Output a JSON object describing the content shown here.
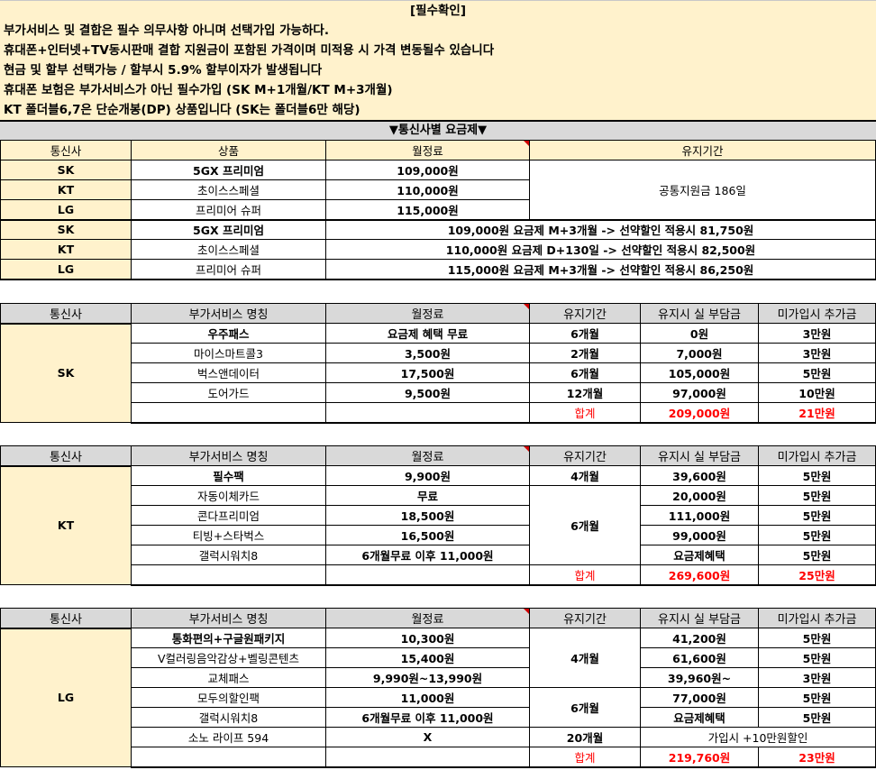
{
  "notice": {
    "title": "[필수확인]",
    "lines": [
      "부가서비스 및 결합은 필수 의무사항 아니며 선택가입 가능하다.",
      "휴대폰+인터넷+TV동시판매 결합 지원금이 포함된 가격이며 미적용 시 가격 변동될수 있습니다",
      "현금 및 할부 선택가능 / 할부시 5.9% 할부이자가 발생됩니다",
      "휴대폰 보험은 부가서비스가 아닌 필수가입 (SK M+1개월/KT M+3개월)",
      "KT 폴더블6,7은 단순개봉(DP) 상품입니다 (SK는 폴더블6만 해당)"
    ]
  },
  "banner": "▼통신사별 요금제▼",
  "plans": {
    "headers": [
      "통신사",
      "상품",
      "월정료",
      "유지기간"
    ],
    "support": "공통지원금 186일",
    "rows": [
      [
        "SK",
        "5GX 프리미엄",
        "109,000원"
      ],
      [
        "KT",
        "초이스스페셜",
        "110,000원"
      ],
      [
        "LG",
        "프리미어 슈퍼",
        "115,000원"
      ]
    ],
    "discount": [
      [
        "SK",
        "5GX 프리미엄",
        "109,000원 요금제 M+3개월 -> 선약할인 적용시 81,750원"
      ],
      [
        "KT",
        "초이스스페셜",
        "110,000원 요금제 D+130일 -> 선약할인 적용시 82,500원"
      ],
      [
        "LG",
        "프리미어 슈퍼",
        "115,000원 요금제 M+3개월 -> 선약할인 적용시 86,250원"
      ]
    ]
  },
  "addon_headers": [
    "통신사",
    "부가서비스 명칭",
    "월정료",
    "유지기간",
    "유지시 실 부담금",
    "미가입시 추가금"
  ],
  "sk": {
    "carrier": "SK",
    "rows": [
      [
        "우주패스",
        "요금제 혜택 무료",
        "6개월",
        "0원",
        "3만원"
      ],
      [
        "마이스마트콜3",
        "3,500원",
        "2개월",
        "7,000원",
        "3만원"
      ],
      [
        "벅스앤데이터",
        "17,500원",
        "6개월",
        "105,000원",
        "5만원"
      ],
      [
        "도어가드",
        "9,500원",
        "12개월",
        "97,000원",
        "10만원"
      ]
    ],
    "total": [
      "합계",
      "209,000원",
      "21만원"
    ]
  },
  "kt": {
    "carrier": "KT",
    "rows": [
      [
        "필수팩",
        "9,900원",
        "4개월",
        "39,600원",
        "5만원"
      ],
      [
        "자동이체카드",
        "무료",
        "6개월",
        "20,000원",
        "5만원"
      ],
      [
        "콘다프리미엄",
        "18,500원",
        "",
        "111,000원",
        "5만원"
      ],
      [
        "티빙+스타벅스",
        "16,500원",
        "",
        "99,000원",
        "5만원"
      ],
      [
        "갤럭시워치8",
        "6개월무료 이후 11,000원",
        "",
        "요금제혜택",
        "5만원"
      ]
    ],
    "total": [
      "합계",
      "269,600원",
      "25만원"
    ]
  },
  "lg": {
    "carrier": "LG",
    "rows": [
      [
        "통화편의+구글원패키지",
        "10,300원",
        "4개월",
        "41,200원",
        "5만원"
      ],
      [
        "V컬러링음악감상+벨링콘텐츠",
        "15,400원",
        "",
        "61,600원",
        "5만원"
      ],
      [
        "교체패스",
        "9,990원~13,990원",
        "",
        "39,960원~",
        "3만원"
      ],
      [
        "모두의할인팩",
        "11,000원",
        "6개월",
        "77,000원",
        "5만원"
      ],
      [
        "갤럭시워치8",
        "6개월무료 이후 11,000원",
        "",
        "요금제혜택",
        "5만원"
      ],
      [
        "소노 라이프 594",
        "X",
        "20개월",
        "가입시 +10만원할인",
        ""
      ]
    ],
    "total": [
      "합계",
      "219,760원",
      "23만원"
    ]
  },
  "colors": {
    "cream": "#fff2cc",
    "gray": "#d9d9d9",
    "total_red": "#ff0000"
  }
}
